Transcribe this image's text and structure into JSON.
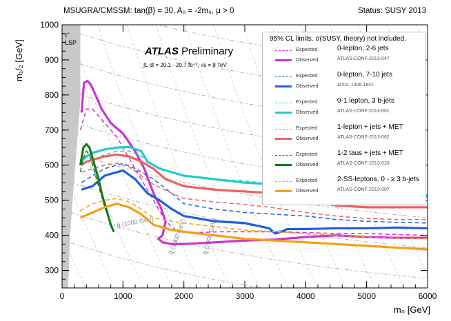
{
  "header": {
    "left": "MSUGRA/CMSSM: tan(β) = 30, A₀ = -2m₀, μ > 0",
    "right": "Status: SUSY 2013"
  },
  "atlas_label": "ATLAS",
  "prelim_label": "Preliminary",
  "lumi_label": "∫L dt = 20.1 - 20.7 fb⁻¹, √s = 8 TeV",
  "stau_label": "τ̃",
  "lsp_label": "LSP",
  "chart_data": {
    "type": "line",
    "title": "",
    "xlabel": "m₀ [GeV]",
    "ylabel": "m₁/₂ [GeV]",
    "xlim": [
      0,
      6000
    ],
    "ylim": [
      250,
      1000
    ],
    "xticks": [
      0,
      1000,
      2000,
      3000,
      4000,
      5000,
      6000
    ],
    "yticks": [
      300,
      400,
      500,
      600,
      700,
      800,
      900,
      1000
    ],
    "legend_title": "95% CL limits. σ(SUSY, theory) not included.",
    "legend_position": "top-right",
    "excluded_region": {
      "name": "τ̃ LSP",
      "x": [
        0,
        300,
        300,
        200,
        130,
        100,
        0
      ],
      "y": [
        1000,
        1000,
        780,
        560,
        400,
        250,
        250
      ]
    },
    "contour_labels": [
      "g̃ (1400 GeV)",
      "g̃ (1000 GeV)",
      "q̃ (1600 GeV)",
      "q̃ (2000 GeV)"
    ],
    "series": [
      {
        "name": "0-lepton, 2-6 jets",
        "ref": "ATLAS-CONF-2013-047",
        "color": "#cc33cc",
        "observed": {
          "x": [
            320,
            360,
            420,
            470,
            550,
            650,
            800,
            1000,
            1200,
            1350,
            1500,
            1620,
            1700,
            1650,
            1580,
            1650,
            1800,
            2000,
            2500,
            3000,
            3500,
            4000,
            4500,
            5000,
            5500,
            6000
          ],
          "y": [
            750,
            835,
            840,
            830,
            800,
            760,
            720,
            690,
            640,
            590,
            520,
            480,
            440,
            400,
            390,
            380,
            375,
            375,
            380,
            385,
            388,
            395,
            400,
            395,
            393,
            393
          ]
        },
        "expected": {
          "x": [
            300,
            400,
            500,
            700,
            900,
            1100,
            1300,
            1500,
            1700,
            1900,
            2200,
            2600,
            3000,
            3500,
            4000,
            4500,
            5000,
            5500,
            6000
          ],
          "y": [
            700,
            760,
            760,
            720,
            680,
            620,
            560,
            500,
            440,
            410,
            408,
            410,
            410,
            410,
            408,
            405,
            405,
            402,
            400
          ]
        }
      },
      {
        "name": "0-lepton, 7-10 jets",
        "ref": "arXiv: 1308.1841",
        "color": "#1f5fde",
        "observed": {
          "x": [
            320,
            400,
            500,
            700,
            900,
            1000,
            1200,
            1400,
            1600,
            1800,
            2000,
            2500,
            3000,
            3400,
            3500,
            3600,
            3700,
            4000,
            4500,
            5000,
            5500,
            6000
          ],
          "y": [
            530,
            535,
            540,
            570,
            580,
            585,
            560,
            520,
            500,
            475,
            455,
            440,
            435,
            420,
            405,
            410,
            418,
            418,
            420,
            420,
            422,
            420
          ]
        },
        "expected": {
          "x": [
            320,
            500,
            700,
            900,
            1000,
            1200,
            1500,
            1800,
            2000,
            2500,
            3000,
            3500,
            4000,
            4500,
            5000,
            5500,
            6000
          ],
          "y": [
            550,
            570,
            590,
            600,
            605,
            590,
            560,
            520,
            490,
            475,
            465,
            460,
            455,
            445,
            440,
            437,
            435
          ]
        }
      },
      {
        "name": "0-1 lepton, 3 b-jets",
        "ref": "ATLAS-CONF-2013-061",
        "color": "#22cccc",
        "observed": {
          "x": [
            320,
            400,
            500,
            700,
            900,
            1100,
            1300,
            1400,
            1600,
            1800,
            2000,
            2500,
            3000,
            3500,
            4000,
            4500,
            5000,
            5500,
            6000
          ],
          "y": [
            610,
            625,
            635,
            645,
            650,
            652,
            640,
            610,
            590,
            580,
            570,
            560,
            550,
            545,
            540,
            530,
            525,
            520,
            510
          ]
        },
        "expected": {
          "x": [
            320,
            500,
            700,
            900,
            1100,
            1300,
            1500,
            1800,
            2000,
            2500,
            3000,
            3500,
            4000,
            4500,
            5000,
            5500,
            6000
          ],
          "y": [
            600,
            615,
            630,
            640,
            640,
            625,
            600,
            580,
            570,
            560,
            555,
            545,
            540,
            532,
            528,
            520,
            515
          ]
        }
      },
      {
        "name": "1-lepton + jets + MET",
        "ref": "ATLAS-CONF-2013-062",
        "color": "#f06060",
        "observed": {
          "x": [
            320,
            400,
            500,
            700,
            900,
            1100,
            1300,
            1500,
            1700,
            2000,
            2500,
            3000,
            3500,
            4000,
            4500,
            5000,
            5500,
            6000
          ],
          "y": [
            600,
            610,
            615,
            625,
            630,
            625,
            610,
            590,
            560,
            540,
            530,
            525,
            520,
            500,
            485,
            480,
            480,
            480
          ]
        },
        "expected": {
          "x": [
            320,
            500,
            700,
            900,
            1100,
            1300,
            1500,
            1800,
            2000,
            2500,
            3000,
            3500,
            4000,
            4500,
            5000,
            5500,
            6000
          ],
          "y": [
            580,
            590,
            600,
            605,
            595,
            570,
            545,
            520,
            505,
            495,
            488,
            478,
            465,
            455,
            448,
            445,
            445
          ]
        }
      },
      {
        "name": "1-2 taus + jets + MET",
        "ref": "ATLAS-CONF-2013-026",
        "color": "#1a7a1a",
        "observed": {
          "x": [
            300,
            350,
            400,
            450,
            500,
            550,
            600,
            650,
            700,
            750,
            800,
            850
          ],
          "y": [
            600,
            650,
            660,
            650,
            620,
            590,
            560,
            520,
            490,
            460,
            430,
            410
          ]
        },
        "expected": {
          "x": [
            300,
            350,
            400,
            450,
            500,
            600,
            700,
            800
          ],
          "y": [
            580,
            620,
            640,
            630,
            600,
            540,
            480,
            430
          ]
        }
      },
      {
        "name": "2-SS-leptons, 0 - ≥ 3 b-jets",
        "ref": "ATLAS-CONF-2013-007",
        "color": "#f5a010",
        "observed": {
          "x": [
            300,
            500,
            700,
            900,
            1100,
            1300,
            1500,
            1800,
            2000,
            2500,
            3000,
            3500,
            4000,
            4500,
            5000,
            5500,
            6000
          ],
          "y": [
            450,
            465,
            480,
            490,
            480,
            460,
            430,
            415,
            410,
            400,
            390,
            385,
            380,
            375,
            370,
            365,
            360
          ]
        },
        "expected": {
          "x": [
            300,
            500,
            700,
            900,
            1100,
            1300,
            1500,
            1800,
            2000,
            2500,
            3000,
            3500,
            4000,
            4500,
            5000,
            5500,
            6000
          ],
          "y": [
            470,
            490,
            500,
            505,
            495,
            475,
            450,
            440,
            435,
            425,
            415,
            410,
            405,
            400,
            395,
            392,
            390
          ]
        }
      }
    ]
  }
}
